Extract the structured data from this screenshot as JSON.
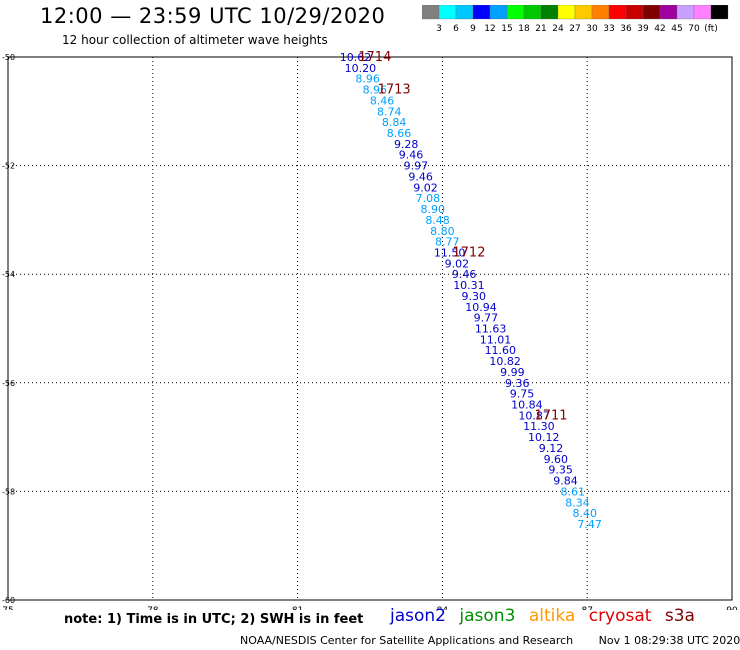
{
  "header": {
    "title": "12:00 — 23:59 UTC 10/29/2020",
    "subtitle": "12 hour collection of altimeter wave heights"
  },
  "colorbar": {
    "colors": [
      "#808080",
      "#00ffff",
      "#00c8ff",
      "#0000ff",
      "#00a0ff",
      "#00ff00",
      "#00c800",
      "#008000",
      "#ffff00",
      "#ffc800",
      "#ff8000",
      "#ff0000",
      "#c80000",
      "#800000",
      "#a000a0",
      "#c8a0ff",
      "#ff80ff",
      "#000000"
    ],
    "labels": [
      "3",
      "6",
      "9",
      "12",
      "15",
      "18",
      "21",
      "24",
      "27",
      "30",
      "33",
      "36",
      "39",
      "42",
      "45",
      "70",
      "(ft)"
    ]
  },
  "chart_data": {
    "type": "scatter",
    "title": "12 hour collection of altimeter wave heights",
    "xlabel": "",
    "ylabel": "",
    "xlim": [
      75,
      90
    ],
    "ylim": [
      -60,
      -50
    ],
    "x_ticks": [
      "75",
      "78",
      "81",
      "84",
      "87",
      "90"
    ],
    "y_ticks": [
      "-50",
      "-52",
      "-54",
      "-56",
      "-58",
      "-60"
    ],
    "grid": true,
    "points": [
      {
        "lon": 82.2,
        "lat": -50.0,
        "label": "10.62",
        "color": "#0000cd"
      },
      {
        "lon": 82.3,
        "lat": -50.2,
        "label": "10.20",
        "color": "#0000cd"
      },
      {
        "lon": 82.45,
        "lat": -50.4,
        "label": "8.96",
        "color": "#00a0ff"
      },
      {
        "lon": 82.6,
        "lat": -50.6,
        "label": "8.96",
        "color": "#00a0ff"
      },
      {
        "lon": 82.75,
        "lat": -50.8,
        "label": "8.46",
        "color": "#00a0ff"
      },
      {
        "lon": 82.9,
        "lat": -51.0,
        "label": "8.74",
        "color": "#00a0ff"
      },
      {
        "lon": 83.0,
        "lat": -51.2,
        "label": "8.84",
        "color": "#00a0ff"
      },
      {
        "lon": 83.1,
        "lat": -51.4,
        "label": "8.66",
        "color": "#00a0ff"
      },
      {
        "lon": 83.25,
        "lat": -51.6,
        "label": "9.28",
        "color": "#0000cd"
      },
      {
        "lon": 83.35,
        "lat": -51.8,
        "label": "9.46",
        "color": "#0000cd"
      },
      {
        "lon": 83.45,
        "lat": -52.0,
        "label": "9.97",
        "color": "#0000cd"
      },
      {
        "lon": 83.55,
        "lat": -52.2,
        "label": "9.46",
        "color": "#0000cd"
      },
      {
        "lon": 83.65,
        "lat": -52.4,
        "label": "9.02",
        "color": "#0000cd"
      },
      {
        "lon": 83.7,
        "lat": -52.6,
        "label": "7.08",
        "color": "#00a0ff"
      },
      {
        "lon": 83.8,
        "lat": -52.8,
        "label": "8.90",
        "color": "#00a0ff"
      },
      {
        "lon": 83.9,
        "lat": -53.0,
        "label": "8.48",
        "color": "#00a0ff"
      },
      {
        "lon": 84.0,
        "lat": -53.2,
        "label": "8.80",
        "color": "#00a0ff"
      },
      {
        "lon": 84.1,
        "lat": -53.4,
        "label": "8.77",
        "color": "#00a0ff"
      },
      {
        "lon": 84.15,
        "lat": -53.6,
        "label": "11.50",
        "color": "#0000cd"
      },
      {
        "lon": 84.3,
        "lat": -53.8,
        "label": "9.02",
        "color": "#0000cd"
      },
      {
        "lon": 84.45,
        "lat": -54.0,
        "label": "9.46",
        "color": "#0000cd"
      },
      {
        "lon": 84.55,
        "lat": -54.2,
        "label": "10.31",
        "color": "#0000cd"
      },
      {
        "lon": 84.65,
        "lat": -54.4,
        "label": "9.30",
        "color": "#0000cd"
      },
      {
        "lon": 84.8,
        "lat": -54.6,
        "label": "10.94",
        "color": "#0000cd"
      },
      {
        "lon": 84.9,
        "lat": -54.8,
        "label": "9.77",
        "color": "#0000cd"
      },
      {
        "lon": 85.0,
        "lat": -55.0,
        "label": "11.63",
        "color": "#0000cd"
      },
      {
        "lon": 85.1,
        "lat": -55.2,
        "label": "11.01",
        "color": "#0000cd"
      },
      {
        "lon": 85.2,
        "lat": -55.4,
        "label": "11.60",
        "color": "#0000cd"
      },
      {
        "lon": 85.3,
        "lat": -55.6,
        "label": "10.82",
        "color": "#0000cd"
      },
      {
        "lon": 85.45,
        "lat": -55.8,
        "label": "9.99",
        "color": "#0000cd"
      },
      {
        "lon": 85.55,
        "lat": -56.0,
        "label": "9.36",
        "color": "#0000cd"
      },
      {
        "lon": 85.65,
        "lat": -56.2,
        "label": "9.75",
        "color": "#0000cd"
      },
      {
        "lon": 85.75,
        "lat": -56.4,
        "label": "10.84",
        "color": "#0000cd"
      },
      {
        "lon": 85.9,
        "lat": -56.6,
        "label": "10.87",
        "color": "#0000cd"
      },
      {
        "lon": 86.0,
        "lat": -56.8,
        "label": "11.30",
        "color": "#0000cd"
      },
      {
        "lon": 86.1,
        "lat": -57.0,
        "label": "10.12",
        "color": "#0000cd"
      },
      {
        "lon": 86.25,
        "lat": -57.2,
        "label": "9.12",
        "color": "#0000cd"
      },
      {
        "lon": 86.35,
        "lat": -57.4,
        "label": "9.60",
        "color": "#0000cd"
      },
      {
        "lon": 86.45,
        "lat": -57.6,
        "label": "9.35",
        "color": "#0000cd"
      },
      {
        "lon": 86.55,
        "lat": -57.8,
        "label": "9.84",
        "color": "#0000cd"
      },
      {
        "lon": 86.7,
        "lat": -58.0,
        "label": "8.61",
        "color": "#00a0ff"
      },
      {
        "lon": 86.8,
        "lat": -58.2,
        "label": "8.34",
        "color": "#00a0ff"
      },
      {
        "lon": 86.95,
        "lat": -58.4,
        "label": "8.40",
        "color": "#00a0ff"
      },
      {
        "lon": 87.05,
        "lat": -58.6,
        "label": "7.47",
        "color": "#00a0ff"
      }
    ],
    "annotations": [
      {
        "lon": 82.6,
        "lat": -50.0,
        "text": "1714",
        "color": "#800000"
      },
      {
        "lon": 83.0,
        "lat": -50.6,
        "text": "1713",
        "color": "#800000"
      },
      {
        "lon": 84.55,
        "lat": -53.6,
        "text": "1712",
        "color": "#800000"
      },
      {
        "lon": 86.25,
        "lat": -56.6,
        "text": "1711",
        "color": "#800000"
      }
    ]
  },
  "note": "note: 1) Time is in UTC; 2) SWH is in feet",
  "legend": [
    {
      "label": "jason2",
      "color": "#0000cd"
    },
    {
      "label": "jason3",
      "color": "#009000"
    },
    {
      "label": "altika",
      "color": "#ff9900"
    },
    {
      "label": "cryosat",
      "color": "#e00000"
    },
    {
      "label": "s3a",
      "color": "#800000"
    }
  ],
  "footer": {
    "source": "NOAA/NESDIS Center for Satellite Applications and Research",
    "timestamp": "Nov 1 08:29:38 UTC 2020"
  }
}
